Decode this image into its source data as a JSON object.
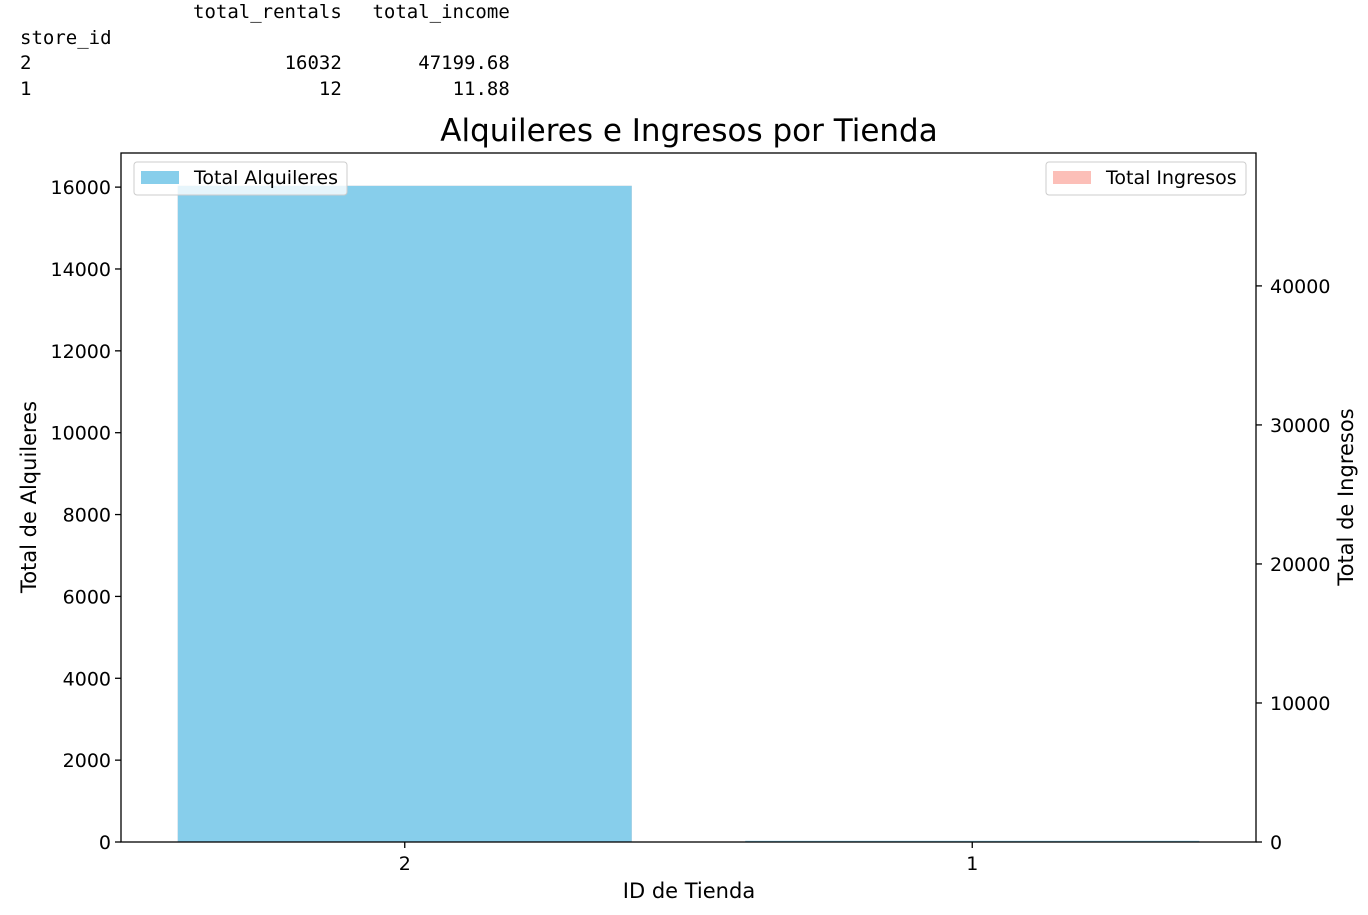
{
  "dataframe": {
    "index_name": "store_id",
    "columns": [
      "total_rentals",
      "total_income"
    ],
    "rows": [
      {
        "index": "2",
        "total_rentals": "16032",
        "total_income": "47199.68"
      },
      {
        "index": "1",
        "total_rentals": "12",
        "total_income": "11.88"
      }
    ]
  },
  "chart_data": {
    "type": "bar",
    "title": "Alquileres e Ingresos por Tienda",
    "xlabel": "ID de Tienda",
    "ylabel": "Total de Alquileres",
    "y2label": "Total de Ingresos",
    "categories": [
      "2",
      "1"
    ],
    "series": [
      {
        "name": "Total Alquileres",
        "axis": "left",
        "color": "#87ceeb",
        "values": [
          16032,
          12
        ]
      },
      {
        "name": "Total Ingresos",
        "axis": "right",
        "color": "#fa8072",
        "opacity": 0.5,
        "values": [
          47199.68,
          11.88
        ]
      }
    ],
    "ylim": [
      0,
      16833.6
    ],
    "y2lim": [
      0,
      49559.66
    ],
    "yticks": [
      "0",
      "2000",
      "4000",
      "6000",
      "8000",
      "10000",
      "12000",
      "14000",
      "16000"
    ],
    "y2ticks": [
      "0",
      "10000",
      "20000",
      "30000",
      "40000"
    ],
    "legend": [
      {
        "label": "Total Alquileres",
        "placement": "upper left",
        "color": "#87ceeb"
      },
      {
        "label": "Total Ingresos",
        "placement": "upper right",
        "color": "#fa8072",
        "opacity": 0.5
      }
    ],
    "grid": false
  }
}
